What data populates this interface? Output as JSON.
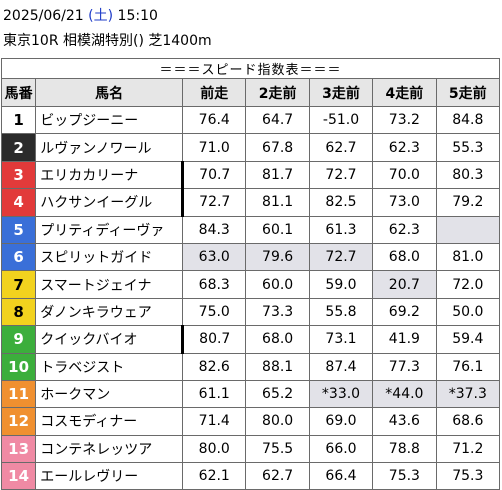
{
  "header": {
    "date": "2025/06/21",
    "day_open": "(",
    "day": "土",
    "day_close": ")",
    "time": "15:10",
    "race": "東京10R 相模湖特別() 芝1400m"
  },
  "table": {
    "title": "＝＝＝スピード指数表＝＝＝",
    "columns": [
      "馬番",
      "馬名",
      "前走",
      "2走前",
      "3走前",
      "4走前",
      "5走前"
    ],
    "rows": [
      {
        "num": "1",
        "name": "ビップジーニー",
        "vals": [
          "76.4",
          "64.7",
          "-51.0",
          "73.2",
          "84.8"
        ],
        "bg": "#ffffff",
        "fg": "#000000",
        "mark": false,
        "shade": [
          false,
          false,
          false,
          false,
          false
        ]
      },
      {
        "num": "2",
        "name": "ルヴァンノワール",
        "vals": [
          "71.0",
          "67.8",
          "62.7",
          "62.3",
          "55.3"
        ],
        "bg": "#2b2b2b",
        "fg": "#ffffff",
        "mark": false,
        "shade": [
          false,
          false,
          false,
          false,
          false
        ]
      },
      {
        "num": "3",
        "name": "エリカカリーナ",
        "vals": [
          "70.7",
          "81.7",
          "72.7",
          "70.0",
          "80.3"
        ],
        "bg": "#e23a3a",
        "fg": "#ffffff",
        "mark": true,
        "shade": [
          false,
          false,
          false,
          false,
          false
        ]
      },
      {
        "num": "4",
        "name": "ハクサンイーグル",
        "vals": [
          "72.7",
          "81.1",
          "82.5",
          "73.0",
          "79.2"
        ],
        "bg": "#e23a3a",
        "fg": "#ffffff",
        "mark": true,
        "shade": [
          false,
          false,
          false,
          false,
          false
        ]
      },
      {
        "num": "5",
        "name": "プリティディーヴァ",
        "vals": [
          "84.3",
          "60.1",
          "61.3",
          "62.3",
          ""
        ],
        "bg": "#3a6fd8",
        "fg": "#ffffff",
        "mark": false,
        "shade": [
          false,
          false,
          false,
          false,
          true
        ]
      },
      {
        "num": "6",
        "name": "スピリットガイド",
        "vals": [
          "63.0",
          "79.6",
          "72.7",
          "68.0",
          "81.0"
        ],
        "bg": "#3a6fd8",
        "fg": "#ffffff",
        "mark": false,
        "shade": [
          true,
          true,
          true,
          false,
          false
        ]
      },
      {
        "num": "7",
        "name": "スマートジェイナ",
        "vals": [
          "68.3",
          "60.0",
          "59.0",
          "20.7",
          "72.0"
        ],
        "bg": "#f2d21e",
        "fg": "#000000",
        "mark": false,
        "shade": [
          false,
          false,
          false,
          true,
          false
        ]
      },
      {
        "num": "8",
        "name": "ダノンキラウェア",
        "vals": [
          "75.0",
          "73.3",
          "55.8",
          "69.2",
          "50.0"
        ],
        "bg": "#f2d21e",
        "fg": "#000000",
        "mark": false,
        "shade": [
          false,
          false,
          false,
          false,
          false
        ]
      },
      {
        "num": "9",
        "name": "クイックバイオ",
        "vals": [
          "80.7",
          "68.0",
          "73.1",
          "41.9",
          "59.4"
        ],
        "bg": "#3cae3c",
        "fg": "#ffffff",
        "mark": true,
        "shade": [
          false,
          false,
          false,
          false,
          false
        ]
      },
      {
        "num": "10",
        "name": "トラベジスト",
        "vals": [
          "82.6",
          "88.1",
          "87.4",
          "77.3",
          "76.1"
        ],
        "bg": "#3cae3c",
        "fg": "#ffffff",
        "mark": false,
        "shade": [
          false,
          false,
          false,
          false,
          false
        ]
      },
      {
        "num": "11",
        "name": "ホークマン",
        "vals": [
          "61.1",
          "65.2",
          "*33.0",
          "*44.0",
          "*37.3"
        ],
        "bg": "#f09030",
        "fg": "#ffffff",
        "mark": false,
        "shade": [
          false,
          false,
          true,
          true,
          true
        ]
      },
      {
        "num": "12",
        "name": "コスモディナー",
        "vals": [
          "71.4",
          "80.0",
          "69.0",
          "43.6",
          "68.6"
        ],
        "bg": "#f09030",
        "fg": "#ffffff",
        "mark": false,
        "shade": [
          false,
          false,
          false,
          false,
          false
        ]
      },
      {
        "num": "13",
        "name": "コンテネレッツア",
        "vals": [
          "80.0",
          "75.5",
          "66.0",
          "78.8",
          "71.2"
        ],
        "bg": "#f08aa4",
        "fg": "#ffffff",
        "mark": false,
        "shade": [
          false,
          false,
          false,
          false,
          false
        ]
      },
      {
        "num": "14",
        "name": "エールレヴリー",
        "vals": [
          "62.1",
          "62.7",
          "66.4",
          "75.3",
          "75.3"
        ],
        "bg": "#f08aa4",
        "fg": "#ffffff",
        "mark": false,
        "shade": [
          false,
          false,
          false,
          false,
          false
        ]
      }
    ]
  }
}
